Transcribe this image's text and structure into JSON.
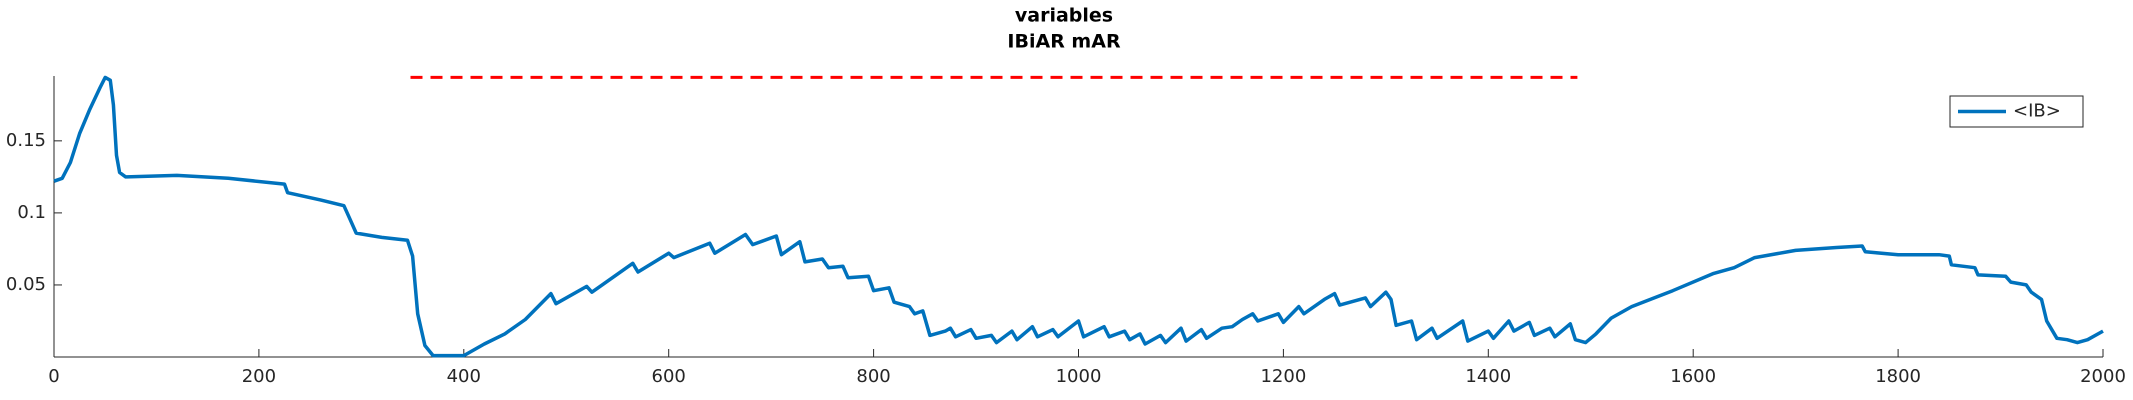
{
  "chart_data": {
    "type": "line",
    "title": "variables",
    "subtitle": "IBiAR mAR",
    "series": [
      {
        "name": "<IB>",
        "color": "#0072bd",
        "x": [
          0,
          8,
          16,
          25,
          35,
          45,
          50,
          55,
          58,
          61,
          64,
          70,
          120,
          170,
          225,
          228,
          260,
          283,
          288,
          295,
          320,
          345,
          350,
          355,
          362,
          370,
          400,
          420,
          440,
          460,
          485,
          490,
          520,
          525,
          565,
          570,
          600,
          605,
          640,
          645,
          675,
          682,
          705,
          710,
          728,
          733,
          750,
          756,
          770,
          775,
          795,
          800,
          815,
          820,
          835,
          840,
          848,
          855,
          870,
          875,
          880,
          895,
          900,
          915,
          920,
          935,
          940,
          955,
          960,
          975,
          980,
          1000,
          1005,
          1025,
          1030,
          1045,
          1050,
          1060,
          1065,
          1080,
          1085,
          1100,
          1105,
          1120,
          1125,
          1140,
          1150,
          1160,
          1170,
          1175,
          1195,
          1200,
          1215,
          1220,
          1240,
          1250,
          1255,
          1280,
          1285,
          1300,
          1305,
          1310,
          1325,
          1330,
          1345,
          1350,
          1375,
          1380,
          1400,
          1405,
          1420,
          1425,
          1440,
          1445,
          1460,
          1465,
          1480,
          1485,
          1495,
          1505,
          1520,
          1540,
          1580,
          1620,
          1640,
          1660,
          1700,
          1740,
          1765,
          1768,
          1800,
          1840,
          1850,
          1852,
          1875,
          1878,
          1905,
          1910,
          1925,
          1930,
          1940,
          1945,
          1955,
          1965,
          1975,
          1985,
          2000
        ],
        "values": [
          0.122,
          0.124,
          0.135,
          0.155,
          0.172,
          0.187,
          0.194,
          0.192,
          0.175,
          0.14,
          0.128,
          0.125,
          0.126,
          0.124,
          0.12,
          0.114,
          0.109,
          0.105,
          0.097,
          0.086,
          0.083,
          0.081,
          0.07,
          0.03,
          0.008,
          0.001,
          0.001,
          0.009,
          0.016,
          0.026,
          0.044,
          0.037,
          0.049,
          0.045,
          0.065,
          0.059,
          0.072,
          0.069,
          0.079,
          0.072,
          0.085,
          0.078,
          0.084,
          0.071,
          0.08,
          0.066,
          0.068,
          0.062,
          0.063,
          0.055,
          0.056,
          0.046,
          0.048,
          0.038,
          0.035,
          0.03,
          0.032,
          0.015,
          0.018,
          0.02,
          0.014,
          0.019,
          0.013,
          0.015,
          0.01,
          0.018,
          0.012,
          0.021,
          0.014,
          0.019,
          0.014,
          0.025,
          0.014,
          0.021,
          0.014,
          0.018,
          0.012,
          0.016,
          0.009,
          0.015,
          0.01,
          0.02,
          0.011,
          0.019,
          0.013,
          0.02,
          0.021,
          0.026,
          0.03,
          0.025,
          0.03,
          0.024,
          0.035,
          0.03,
          0.04,
          0.044,
          0.036,
          0.041,
          0.035,
          0.045,
          0.04,
          0.022,
          0.025,
          0.012,
          0.02,
          0.013,
          0.025,
          0.011,
          0.018,
          0.013,
          0.025,
          0.018,
          0.024,
          0.015,
          0.02,
          0.014,
          0.023,
          0.012,
          0.01,
          0.016,
          0.027,
          0.035,
          0.046,
          0.058,
          0.062,
          0.069,
          0.074,
          0.076,
          0.077,
          0.073,
          0.071,
          0.071,
          0.07,
          0.064,
          0.062,
          0.057,
          0.056,
          0.052,
          0.05,
          0.045,
          0.04,
          0.025,
          0.013,
          0.012,
          0.01,
          0.012,
          0.018
        ]
      }
    ],
    "lines": [
      {
        "x": [
          348,
          1487
        ],
        "values": [
          0.194,
          0.194
        ],
        "color": "#ff0000",
        "dashed": true
      }
    ],
    "xlim": [
      0,
      2000
    ],
    "xticks": [
      0,
      200,
      400,
      600,
      800,
      1000,
      1200,
      1400,
      1600,
      1800,
      2000
    ],
    "ylim": [
      0,
      0.195
    ],
    "yticks": [
      0.05,
      0.1,
      0.15
    ],
    "legend": "northeast"
  }
}
